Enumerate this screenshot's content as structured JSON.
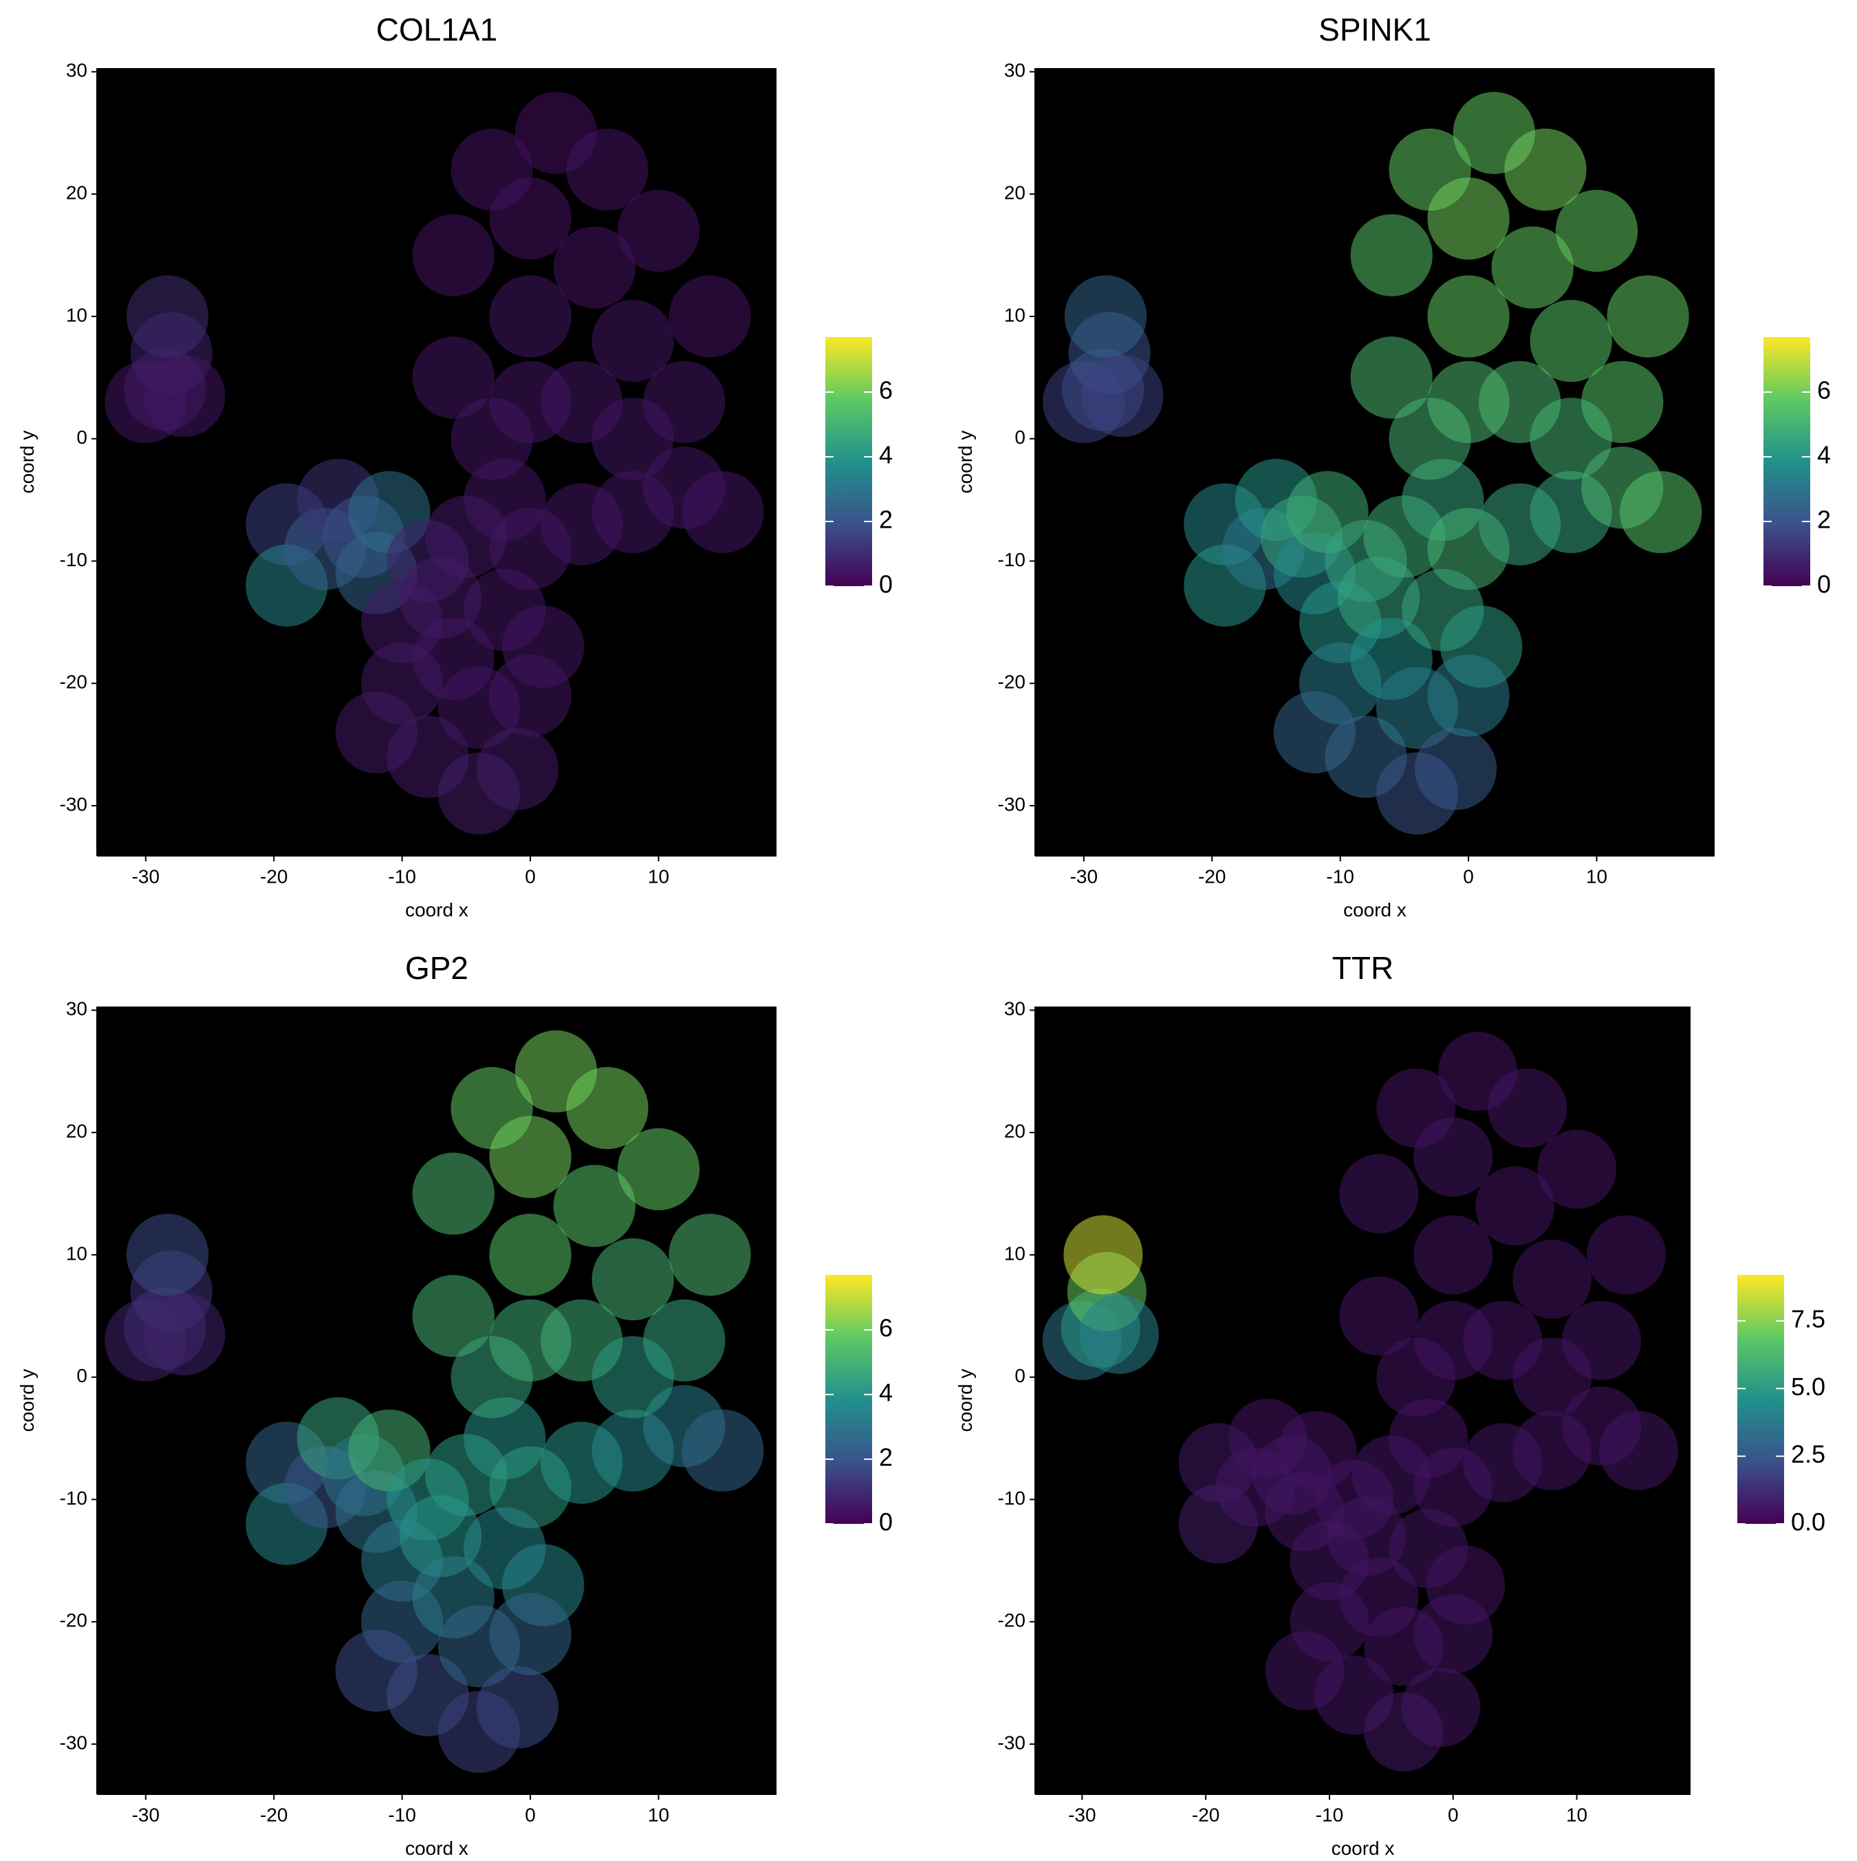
{
  "chart_data": [
    {
      "type": "scatter",
      "title": "COL1A1",
      "x_label": "coord x",
      "y_label": "coord y",
      "x": [
        -30,
        -28.5,
        -28,
        -28.3,
        -27,
        -19,
        -19,
        -16,
        -15,
        -13,
        -12,
        -11,
        -8,
        -5,
        -2,
        0,
        4,
        8,
        -6,
        -6,
        -3,
        0,
        0,
        2,
        4,
        5,
        6,
        8,
        10,
        12,
        12,
        14,
        15,
        8,
        -3,
        0,
        -10,
        -7,
        -10,
        -6,
        -2,
        1,
        -12,
        -8,
        -4,
        -1,
        -4,
        0
      ],
      "y": [
        3,
        4,
        7,
        10,
        3.5,
        -7,
        -12,
        -9,
        -5,
        -8,
        -11,
        -6,
        -10,
        -8,
        -5,
        -9,
        -7,
        -6,
        5,
        15,
        22,
        10,
        18,
        25,
        3,
        14,
        22,
        8,
        17,
        3,
        -4,
        10,
        -6,
        0,
        0,
        3,
        -15,
        -13,
        -20,
        -18,
        -14,
        -17,
        -24,
        -26,
        -22,
        -27,
        -29,
        -21
      ],
      "values": [
        0.5,
        0.6,
        0.8,
        1.0,
        0.5,
        1.5,
        3.5,
        2.2,
        1.2,
        2.0,
        2.5,
        2.8,
        0.8,
        0.6,
        0.5,
        0.5,
        0.5,
        0.5,
        0.5,
        0.4,
        0.4,
        0.5,
        0.4,
        0.3,
        0.5,
        0.4,
        0.4,
        0.5,
        0.4,
        0.5,
        0.5,
        0.4,
        0.5,
        0.5,
        0.5,
        0.5,
        0.6,
        0.6,
        0.6,
        0.5,
        0.5,
        0.5,
        0.6,
        0.6,
        0.5,
        0.6,
        0.7,
        0.5
      ],
      "xlim": [
        -33.8,
        19.2
      ],
      "ylim": [
        -34.1,
        30.3
      ],
      "xticks": [
        -30,
        -20,
        -10,
        0,
        10
      ],
      "yticks": [
        -30,
        -20,
        -10,
        0,
        10,
        20,
        30
      ],
      "clim": [
        0,
        7.7
      ],
      "cticks": [
        0,
        2,
        4,
        6
      ],
      "colormap": [
        "#440154",
        "#3b528b",
        "#21918c",
        "#5ec962",
        "#fde725"
      ],
      "background": "#000000"
    },
    {
      "type": "scatter",
      "title": "SPINK1",
      "x_label": "coord x",
      "y_label": "coord y",
      "x": [
        -30,
        -28.5,
        -28,
        -28.3,
        -27,
        -19,
        -19,
        -16,
        -15,
        -13,
        -12,
        -11,
        -8,
        -5,
        -2,
        0,
        4,
        8,
        -6,
        -6,
        -3,
        0,
        0,
        2,
        4,
        5,
        6,
        8,
        10,
        12,
        12,
        14,
        15,
        8,
        -3,
        0,
        -10,
        -7,
        -10,
        -6,
        -2,
        1,
        -12,
        -8,
        -4,
        -1,
        -4,
        0
      ],
      "y": [
        3,
        4,
        7,
        10,
        3.5,
        -7,
        -12,
        -9,
        -5,
        -8,
        -11,
        -6,
        -10,
        -8,
        -5,
        -9,
        -7,
        -6,
        5,
        15,
        22,
        10,
        18,
        25,
        3,
        14,
        22,
        8,
        17,
        3,
        -4,
        10,
        -6,
        0,
        0,
        3,
        -15,
        -13,
        -20,
        -18,
        -14,
        -17,
        -24,
        -26,
        -22,
        -27,
        -29,
        -21
      ],
      "values": [
        1.5,
        1.8,
        2.0,
        2.5,
        1.5,
        3.5,
        4.0,
        3.0,
        4.0,
        4.5,
        3.5,
        4.8,
        4.5,
        4.8,
        4.5,
        5.0,
        4.5,
        4.5,
        5.2,
        5.5,
        5.8,
        5.8,
        6.0,
        5.8,
        5.2,
        5.8,
        6.0,
        5.5,
        5.8,
        5.5,
        5.2,
        5.8,
        5.5,
        5.0,
        5.0,
        5.2,
        4.0,
        4.5,
        3.2,
        3.8,
        4.5,
        4.2,
        2.5,
        2.5,
        3.2,
        2.2,
        2.0,
        3.2
      ],
      "xlim": [
        -33.8,
        19.2
      ],
      "ylim": [
        -34.1,
        30.3
      ],
      "xticks": [
        -30,
        -20,
        -10,
        0,
        10
      ],
      "yticks": [
        -30,
        -20,
        -10,
        0,
        10,
        20,
        30
      ],
      "clim": [
        0,
        7.7
      ],
      "cticks": [
        0,
        2,
        4,
        6
      ],
      "colormap": [
        "#440154",
        "#3b528b",
        "#21918c",
        "#5ec962",
        "#fde725"
      ],
      "background": "#000000"
    },
    {
      "type": "scatter",
      "title": "GP2",
      "x_label": "coord x",
      "y_label": "coord y",
      "x": [
        -30,
        -28.5,
        -28,
        -28.3,
        -27,
        -19,
        -19,
        -16,
        -15,
        -13,
        -12,
        -11,
        -8,
        -5,
        -2,
        0,
        4,
        8,
        -6,
        -6,
        -3,
        0,
        0,
        2,
        4,
        5,
        6,
        8,
        10,
        12,
        12,
        14,
        15,
        8,
        -3,
        0,
        -10,
        -7,
        -10,
        -6,
        -2,
        1,
        -12,
        -8,
        -4,
        -1,
        -4,
        0
      ],
      "y": [
        3,
        4,
        7,
        10,
        3.5,
        -7,
        -12,
        -9,
        -5,
        -8,
        -11,
        -6,
        -10,
        -8,
        -5,
        -9,
        -7,
        -6,
        5,
        15,
        22,
        10,
        18,
        25,
        3,
        14,
        22,
        8,
        17,
        3,
        -4,
        10,
        -6,
        0,
        0,
        3,
        -15,
        -13,
        -20,
        -18,
        -14,
        -17,
        -24,
        -26,
        -22,
        -27,
        -29,
        -21
      ],
      "values": [
        0.8,
        1.0,
        1.2,
        1.8,
        0.8,
        2.5,
        3.5,
        2.0,
        4.5,
        3.0,
        2.8,
        5.0,
        4.0,
        4.2,
        4.0,
        4.2,
        4.0,
        3.5,
        5.0,
        5.2,
        5.8,
        5.5,
        6.0,
        6.0,
        4.8,
        5.5,
        6.0,
        5.0,
        5.8,
        4.5,
        3.2,
        5.2,
        2.5,
        4.2,
        4.5,
        4.8,
        3.2,
        4.0,
        2.5,
        3.2,
        3.5,
        3.5,
        1.8,
        1.8,
        2.5,
        1.8,
        1.5,
        2.5
      ],
      "xlim": [
        -33.8,
        19.2
      ],
      "ylim": [
        -34.1,
        30.3
      ],
      "xticks": [
        -30,
        -20,
        -10,
        0,
        10
      ],
      "yticks": [
        -30,
        -20,
        -10,
        0,
        10,
        20,
        30
      ],
      "clim": [
        0,
        7.7
      ],
      "cticks": [
        0,
        2,
        4,
        6
      ],
      "colormap": [
        "#440154",
        "#3b528b",
        "#21918c",
        "#5ec962",
        "#fde725"
      ],
      "background": "#000000"
    },
    {
      "type": "scatter",
      "title": "TTR",
      "x_label": "coord x",
      "y_label": "coord y",
      "x": [
        -30,
        -28.5,
        -28,
        -28.3,
        -27,
        -19,
        -19,
        -16,
        -15,
        -13,
        -12,
        -11,
        -8,
        -5,
        -2,
        0,
        4,
        8,
        -6,
        -6,
        -3,
        0,
        0,
        2,
        4,
        5,
        6,
        8,
        10,
        12,
        12,
        14,
        15,
        8,
        -3,
        0,
        -10,
        -7,
        -10,
        -6,
        -2,
        1,
        -12,
        -8,
        -4,
        -1,
        -4,
        0
      ],
      "y": [
        3,
        4,
        7,
        10,
        3.5,
        -7,
        -12,
        -9,
        -5,
        -8,
        -11,
        -6,
        -10,
        -8,
        -5,
        -9,
        -7,
        -6,
        5,
        15,
        22,
        10,
        18,
        25,
        3,
        14,
        22,
        8,
        17,
        3,
        -4,
        10,
        -6,
        0,
        0,
        3,
        -15,
        -13,
        -20,
        -18,
        -14,
        -17,
        -24,
        -26,
        -22,
        -27,
        -29,
        -21
      ],
      "values": [
        3.5,
        5.0,
        7.0,
        8.5,
        4.0,
        0.7,
        0.8,
        0.6,
        0.5,
        0.6,
        0.6,
        0.5,
        0.5,
        0.6,
        0.5,
        0.5,
        0.6,
        0.5,
        0.5,
        0.6,
        0.5,
        0.5,
        0.6,
        0.5,
        0.5,
        0.5,
        0.6,
        0.5,
        0.5,
        0.6,
        0.5,
        0.5,
        0.6,
        0.5,
        0.5,
        0.5,
        0.6,
        0.6,
        0.6,
        0.5,
        0.6,
        0.5,
        0.6,
        0.6,
        0.5,
        0.6,
        0.7,
        0.6
      ],
      "xlim": [
        -33.8,
        19.2
      ],
      "ylim": [
        -34.1,
        30.3
      ],
      "xticks": [
        -30,
        -20,
        -10,
        0,
        10
      ],
      "yticks": [
        -30,
        -20,
        -10,
        0,
        10,
        20,
        30
      ],
      "clim": [
        0,
        9.2
      ],
      "cticks": [
        {
          "value": 0,
          "label": "0.0"
        },
        {
          "value": 2.5,
          "label": "2.5"
        },
        {
          "value": 5,
          "label": "5.0"
        },
        {
          "value": 7.5,
          "label": "7.5"
        }
      ],
      "colormap": [
        "#440154",
        "#3b528b",
        "#21918c",
        "#5ec962",
        "#fde725"
      ],
      "background": "#000000"
    }
  ]
}
